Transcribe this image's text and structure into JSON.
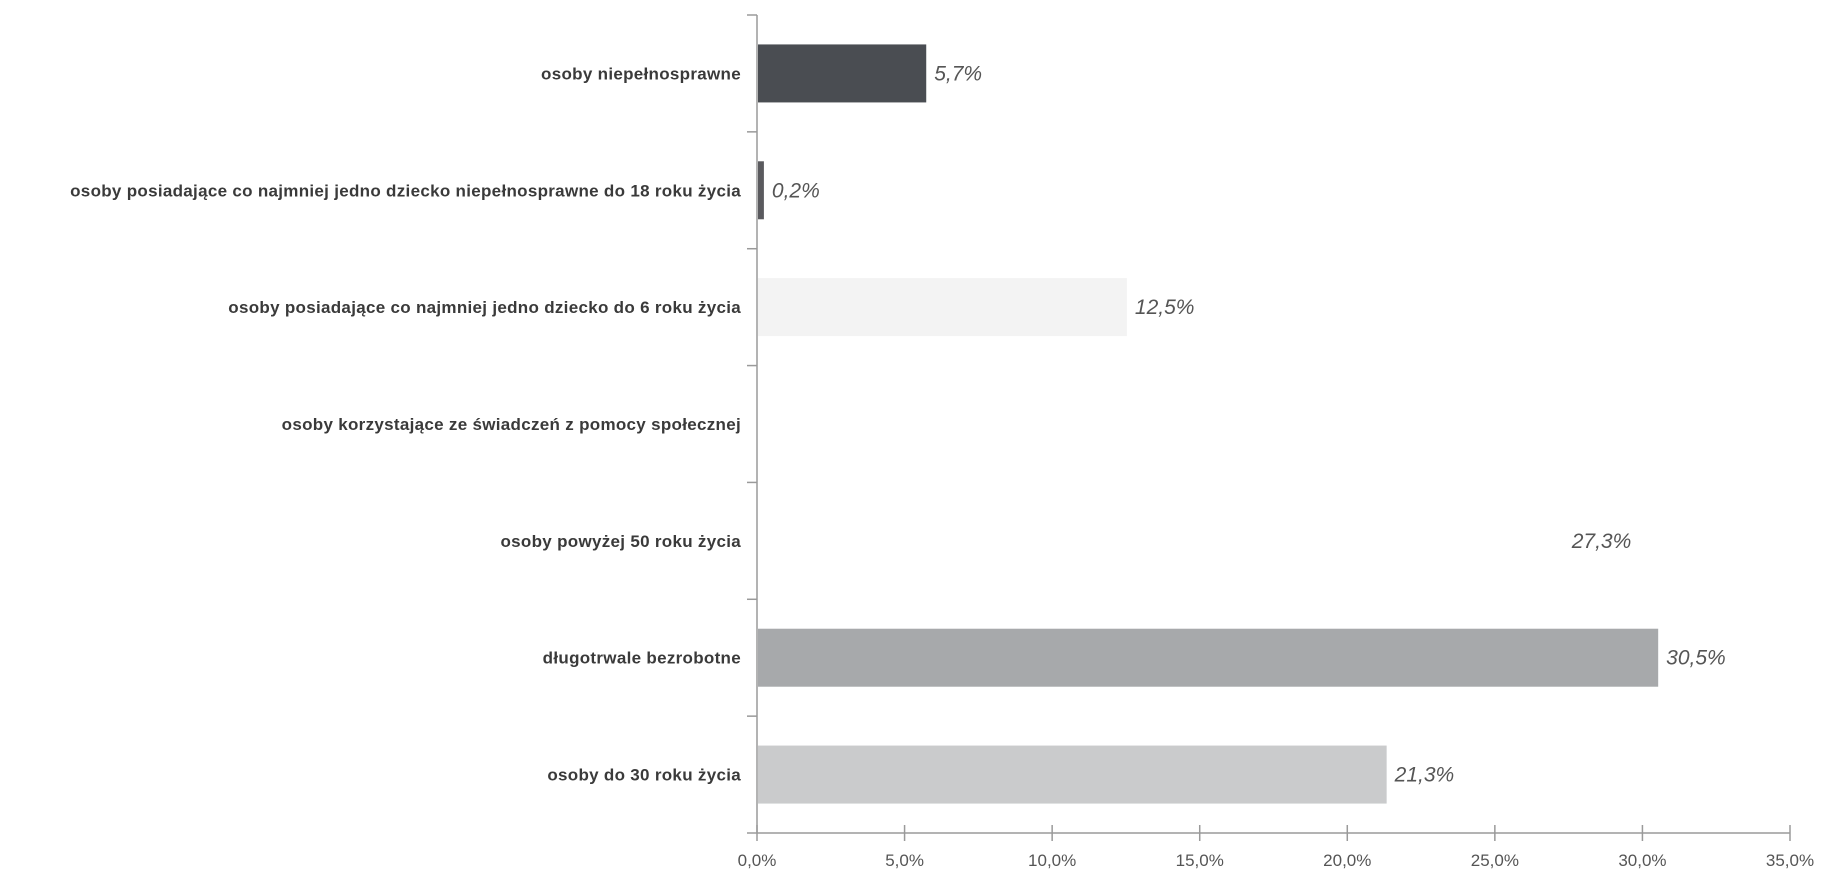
{
  "chart_data": {
    "type": "bar",
    "orientation": "horizontal",
    "categories": [
      "osoby niepełnosprawne",
      "osoby posiadające co najmniej jedno dziecko niepełnosprawne do 18 roku życia",
      "osoby posiadające co najmniej jedno dziecko do 6 roku życia",
      "osoby korzystające ze świadczeń z pomocy społecznej",
      "osoby powyżej 50 roku życia",
      "długotrwale bezrobotne",
      "osoby do 30 roku życia"
    ],
    "values": [
      5.7,
      0.2,
      12.5,
      0,
      27.3,
      30.5,
      21.3
    ],
    "value_labels": [
      "5,7%",
      "0,2%",
      "12,5%",
      "",
      "27,3%",
      "30,5%",
      "21,3%"
    ],
    "colors": [
      "#4a4d52",
      "#5a5a5e",
      "#f3f3f3",
      "#ffffff",
      "#ffffff",
      "#a7a9ab",
      "#cacbcc"
    ],
    "xlim": [
      0,
      35
    ],
    "x_ticks": [
      0,
      5,
      10,
      15,
      20,
      25,
      30,
      35
    ],
    "x_tick_labels": [
      "0,0%",
      "5,0%",
      "10,0%",
      "15,0%",
      "20,0%",
      "25,0%",
      "30,0%",
      "35,0%"
    ],
    "title": "",
    "xlabel": "",
    "ylabel": "",
    "grid": false,
    "legend": "none"
  }
}
